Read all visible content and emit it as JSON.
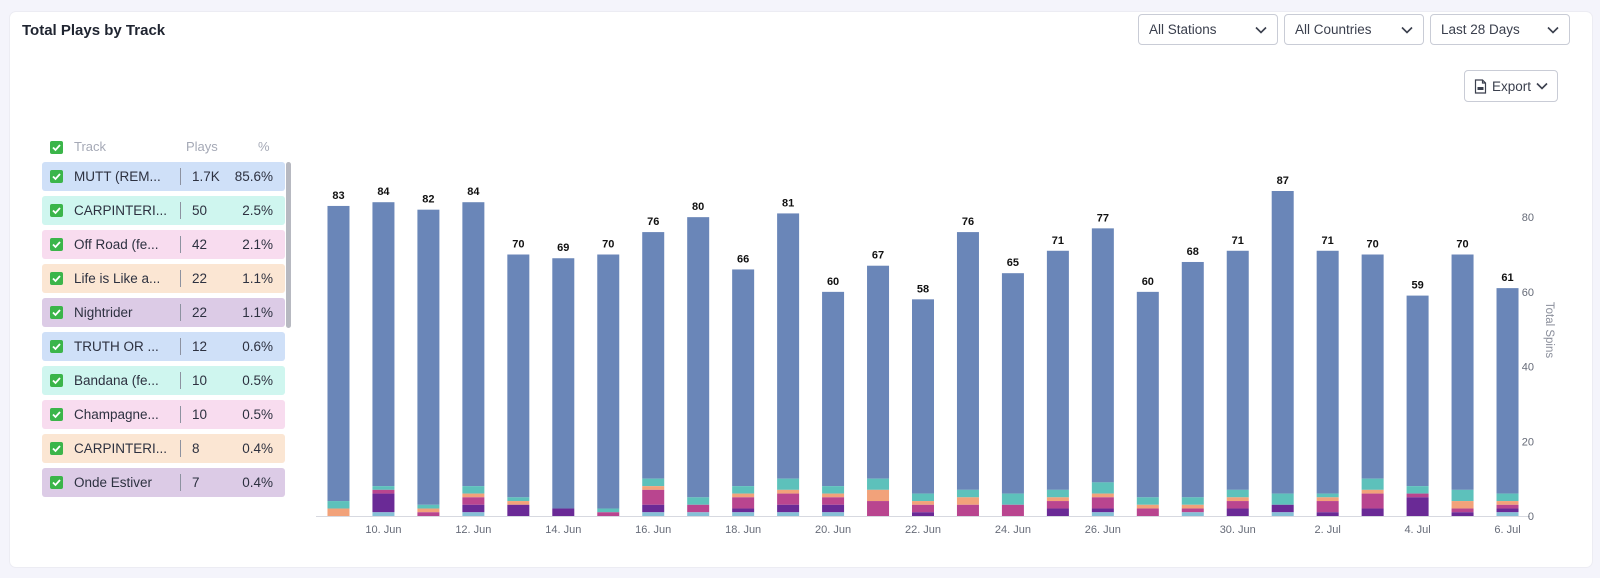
{
  "title": "Total Plays by Track",
  "filters": {
    "stations": "All Stations",
    "countries": "All Countries",
    "range": "Last 28 Days",
    "export": "Export"
  },
  "legend": {
    "headers": {
      "track": "Track",
      "plays": "Plays",
      "pct": "%"
    },
    "rows": [
      {
        "name": "MUTT (REM...",
        "plays": "1.7K",
        "pct": "85.6%",
        "bg": "#cfe0f8"
      },
      {
        "name": "CARPINTERI...",
        "plays": "50",
        "pct": "2.5%",
        "bg": "#cff6ef"
      },
      {
        "name": "Off Road (fe...",
        "plays": "42",
        "pct": "2.1%",
        "bg": "#f8dcef"
      },
      {
        "name": "Life is Like a...",
        "plays": "22",
        "pct": "1.1%",
        "bg": "#fbe6d3"
      },
      {
        "name": "Nightrider",
        "plays": "22",
        "pct": "1.1%",
        "bg": "#dccbe6"
      },
      {
        "name": "TRUTH OR ...",
        "plays": "12",
        "pct": "0.6%",
        "bg": "#cfe0f8"
      },
      {
        "name": "Bandana (fe...",
        "plays": "10",
        "pct": "0.5%",
        "bg": "#cff6ef"
      },
      {
        "name": "Champagne...",
        "plays": "10",
        "pct": "0.5%",
        "bg": "#f8dcef"
      },
      {
        "name": "CARPINTERI...",
        "plays": "8",
        "pct": "0.4%",
        "bg": "#fbe6d3"
      },
      {
        "name": "Onde Estiver",
        "plays": "7",
        "pct": "0.4%",
        "bg": "#dccbe6"
      }
    ]
  },
  "chart_data": {
    "type": "bar",
    "stacked": true,
    "ylabel": "Total Spins",
    "ylim": [
      0,
      87
    ],
    "yticks": [
      0,
      20,
      40,
      60,
      80
    ],
    "xtick_labels": [
      "10. Jun",
      "12. Jun",
      "14. Jun",
      "16. Jun",
      "18. Jun",
      "20. Jun",
      "22. Jun",
      "24. Jun",
      "26. Jun",
      "30. Jun",
      "2. Jul",
      "4. Jul",
      "6. Jul"
    ],
    "xtick_indices": [
      1,
      3,
      5,
      7,
      9,
      11,
      13,
      15,
      17,
      20,
      22,
      24,
      26
    ],
    "colors": {
      "main": "#6a86b8",
      "stack": [
        "#5dc1bb",
        "#f2a27a",
        "#b9458f",
        "#6a2a96",
        "#86c0d6"
      ]
    },
    "totals": [
      83,
      84,
      82,
      84,
      70,
      69,
      70,
      76,
      80,
      66,
      81,
      60,
      67,
      58,
      76,
      65,
      71,
      77,
      60,
      68,
      71,
      87,
      71,
      70,
      59,
      70,
      61
    ],
    "segments": [
      [
        2,
        2,
        0,
        0,
        0
      ],
      [
        1,
        0,
        1,
        5,
        1
      ],
      [
        1,
        1,
        1,
        0,
        0
      ],
      [
        2,
        1,
        2,
        2,
        1
      ],
      [
        1,
        1,
        0,
        3,
        0
      ],
      [
        0,
        0,
        0,
        2,
        0
      ],
      [
        1,
        0,
        1,
        0,
        0
      ],
      [
        2,
        1,
        4,
        2,
        1
      ],
      [
        2,
        0,
        2,
        0,
        1
      ],
      [
        2,
        1,
        3,
        1,
        1
      ],
      [
        3,
        1,
        3,
        2,
        1
      ],
      [
        2,
        1,
        2,
        2,
        1
      ],
      [
        3,
        3,
        4,
        0,
        0
      ],
      [
        2,
        1,
        2,
        1,
        0
      ],
      [
        2,
        2,
        3,
        0,
        0
      ],
      [
        3,
        0,
        3,
        0,
        0
      ],
      [
        2,
        1,
        2,
        2,
        0
      ],
      [
        3,
        1,
        3,
        1,
        1
      ],
      [
        2,
        1,
        2,
        0,
        0
      ],
      [
        2,
        1,
        1,
        0,
        1
      ],
      [
        2,
        1,
        2,
        2,
        0
      ],
      [
        3,
        0,
        0,
        2,
        1
      ],
      [
        1,
        1,
        3,
        1,
        0
      ],
      [
        3,
        1,
        4,
        2,
        0
      ],
      [
        2,
        0,
        1,
        5,
        0
      ],
      [
        3,
        2,
        1,
        1,
        0
      ],
      [
        2,
        1,
        1,
        1,
        1
      ]
    ]
  }
}
